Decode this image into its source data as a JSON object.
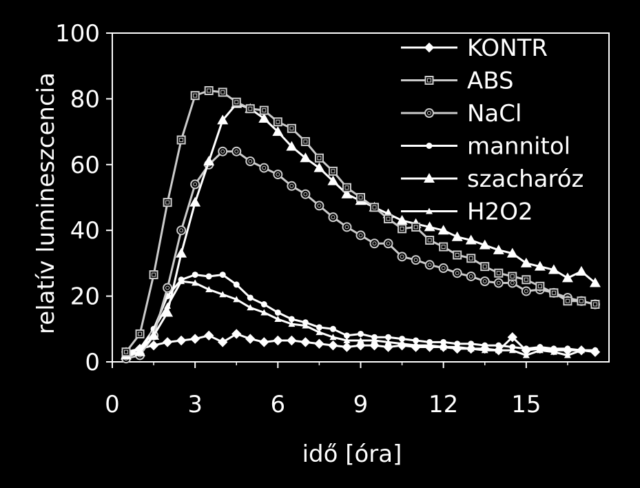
{
  "chart_data": {
    "type": "line",
    "title": "",
    "xlabel": "idő [óra]",
    "ylabel": "relatív lumineszcencia",
    "xlim": [
      0,
      18
    ],
    "ylim": [
      0,
      100
    ],
    "xticks": [
      0,
      3,
      6,
      9,
      12,
      15
    ],
    "yticks": [
      0,
      20,
      40,
      60,
      80,
      100
    ],
    "grid": false,
    "legend_position": "top-right",
    "series": [
      {
        "name": "KONTR",
        "marker": "diamond-filled",
        "color": "#ffffff",
        "x": [
          0.5,
          1,
          1.5,
          2,
          2.5,
          3,
          3.5,
          4,
          4.5,
          5,
          5.5,
          6,
          6.5,
          7,
          7.5,
          8,
          8.5,
          9,
          9.5,
          10,
          10.5,
          11,
          11.5,
          12,
          12.5,
          13,
          13.5,
          14,
          14.5,
          15,
          15.5,
          16,
          16.5,
          17,
          17.5
        ],
        "values": [
          3,
          4,
          5,
          6,
          6.5,
          7,
          8,
          6,
          8.5,
          7,
          6,
          6.5,
          6.5,
          6,
          5.5,
          5,
          4.5,
          5,
          5,
          4.5,
          5,
          4.5,
          4.5,
          4.5,
          4,
          4,
          4,
          3.5,
          7.5,
          3.5,
          4,
          3.5,
          3.5,
          3.5,
          3
        ]
      },
      {
        "name": "ABS",
        "marker": "square-open",
        "color": "#cccccc",
        "x": [
          0.5,
          1,
          1.5,
          2,
          2.5,
          3,
          3.5,
          4,
          4.5,
          5,
          5.5,
          6,
          6.5,
          7,
          7.5,
          8,
          8.5,
          9,
          9.5,
          10,
          10.5,
          11,
          11.5,
          12,
          12.5,
          13,
          13.5,
          14,
          14.5,
          15,
          15.5,
          16,
          16.5,
          17,
          17.5
        ],
        "values": [
          3,
          8.5,
          26.5,
          48.5,
          67.5,
          81,
          82.5,
          82,
          79,
          77,
          76.5,
          73,
          71,
          67,
          62,
          58,
          53,
          50,
          47,
          43.5,
          40.5,
          41,
          37,
          35,
          32.5,
          31.5,
          29,
          27,
          26,
          25,
          23,
          21,
          18.5,
          18.5,
          17.5
        ]
      },
      {
        "name": "NaCl",
        "marker": "circle-open",
        "color": "#cccccc",
        "x": [
          0.5,
          1,
          1.5,
          2,
          2.5,
          3,
          3.5,
          4,
          4.5,
          5,
          5.5,
          6,
          6.5,
          7,
          7.5,
          8,
          8.5,
          9,
          9.5,
          10,
          10.5,
          11,
          11.5,
          12,
          12.5,
          13,
          13.5,
          14,
          14.5,
          15,
          15.5,
          16,
          16.5,
          17,
          17.5
        ],
        "values": [
          1,
          2,
          8,
          22.5,
          40,
          54,
          60,
          64,
          64,
          61,
          59,
          57,
          53.5,
          51,
          47.5,
          44,
          41,
          38.5,
          36,
          36,
          32,
          31,
          29.5,
          28.5,
          27,
          26,
          24.5,
          24,
          24,
          21.5,
          22,
          21,
          19.5,
          18.5,
          17.5
        ]
      },
      {
        "name": "mannitol",
        "marker": "circle-filled",
        "color": "#ffffff",
        "x": [
          0.5,
          1,
          1.5,
          2,
          2.5,
          3,
          3.5,
          4,
          4.5,
          5,
          5.5,
          6,
          6.5,
          7,
          7.5,
          8,
          8.5,
          9,
          9.5,
          10,
          10.5,
          11,
          11.5,
          12,
          12.5,
          13,
          13.5,
          14,
          14.5,
          15,
          15.5,
          16,
          16.5,
          17,
          17.5
        ],
        "values": [
          1.5,
          3,
          10,
          20,
          25,
          26.5,
          26,
          26.5,
          23.5,
          19.5,
          17.5,
          15,
          13,
          12,
          10.5,
          10,
          8,
          8.5,
          7.5,
          7.5,
          7,
          6.5,
          6,
          6,
          5.5,
          5.5,
          5,
          5,
          4.5,
          4,
          4.5,
          4,
          4,
          3.5,
          3.5
        ]
      },
      {
        "name": "szacharóz",
        "marker": "triangle-filled",
        "color": "#ffffff",
        "x": [
          0.5,
          1,
          1.5,
          2,
          2.5,
          3,
          3.5,
          4,
          4.5,
          5,
          5.5,
          6,
          6.5,
          7,
          7.5,
          8,
          8.5,
          9,
          9.5,
          10,
          10.5,
          11,
          11.5,
          12,
          12.5,
          13,
          13.5,
          14,
          14.5,
          15,
          15.5,
          16,
          16.5,
          17,
          17.5
        ],
        "values": [
          2,
          3,
          8,
          15,
          33,
          48.5,
          61,
          73.5,
          78.5,
          77,
          74,
          70,
          65.5,
          62,
          59,
          55,
          51,
          49,
          47,
          45,
          43,
          42,
          41,
          40,
          38,
          37,
          35.5,
          34,
          33,
          30,
          29,
          28,
          25.5,
          27.5,
          24
        ]
      },
      {
        "name": "H2O2",
        "marker": "triangle-small-filled",
        "color": "#ffffff",
        "x": [
          0.5,
          1,
          1.5,
          2,
          2.5,
          3,
          3.5,
          4,
          4.5,
          5,
          5.5,
          6,
          6.5,
          7,
          7.5,
          8,
          8.5,
          9,
          9.5,
          10,
          10.5,
          11,
          11.5,
          12,
          12.5,
          13,
          13.5,
          14,
          14.5,
          15,
          15.5,
          16,
          16.5,
          17,
          17.5
        ],
        "values": [
          2,
          4,
          10,
          17,
          24.5,
          24,
          22,
          20.5,
          19,
          16.5,
          15,
          13,
          11.5,
          11,
          9,
          7.5,
          6.5,
          6.5,
          6.5,
          6,
          5.5,
          5,
          5,
          4.5,
          4.5,
          4,
          3.5,
          3.5,
          3.5,
          2,
          3.5,
          3,
          2,
          3.5,
          3.5
        ]
      }
    ]
  }
}
